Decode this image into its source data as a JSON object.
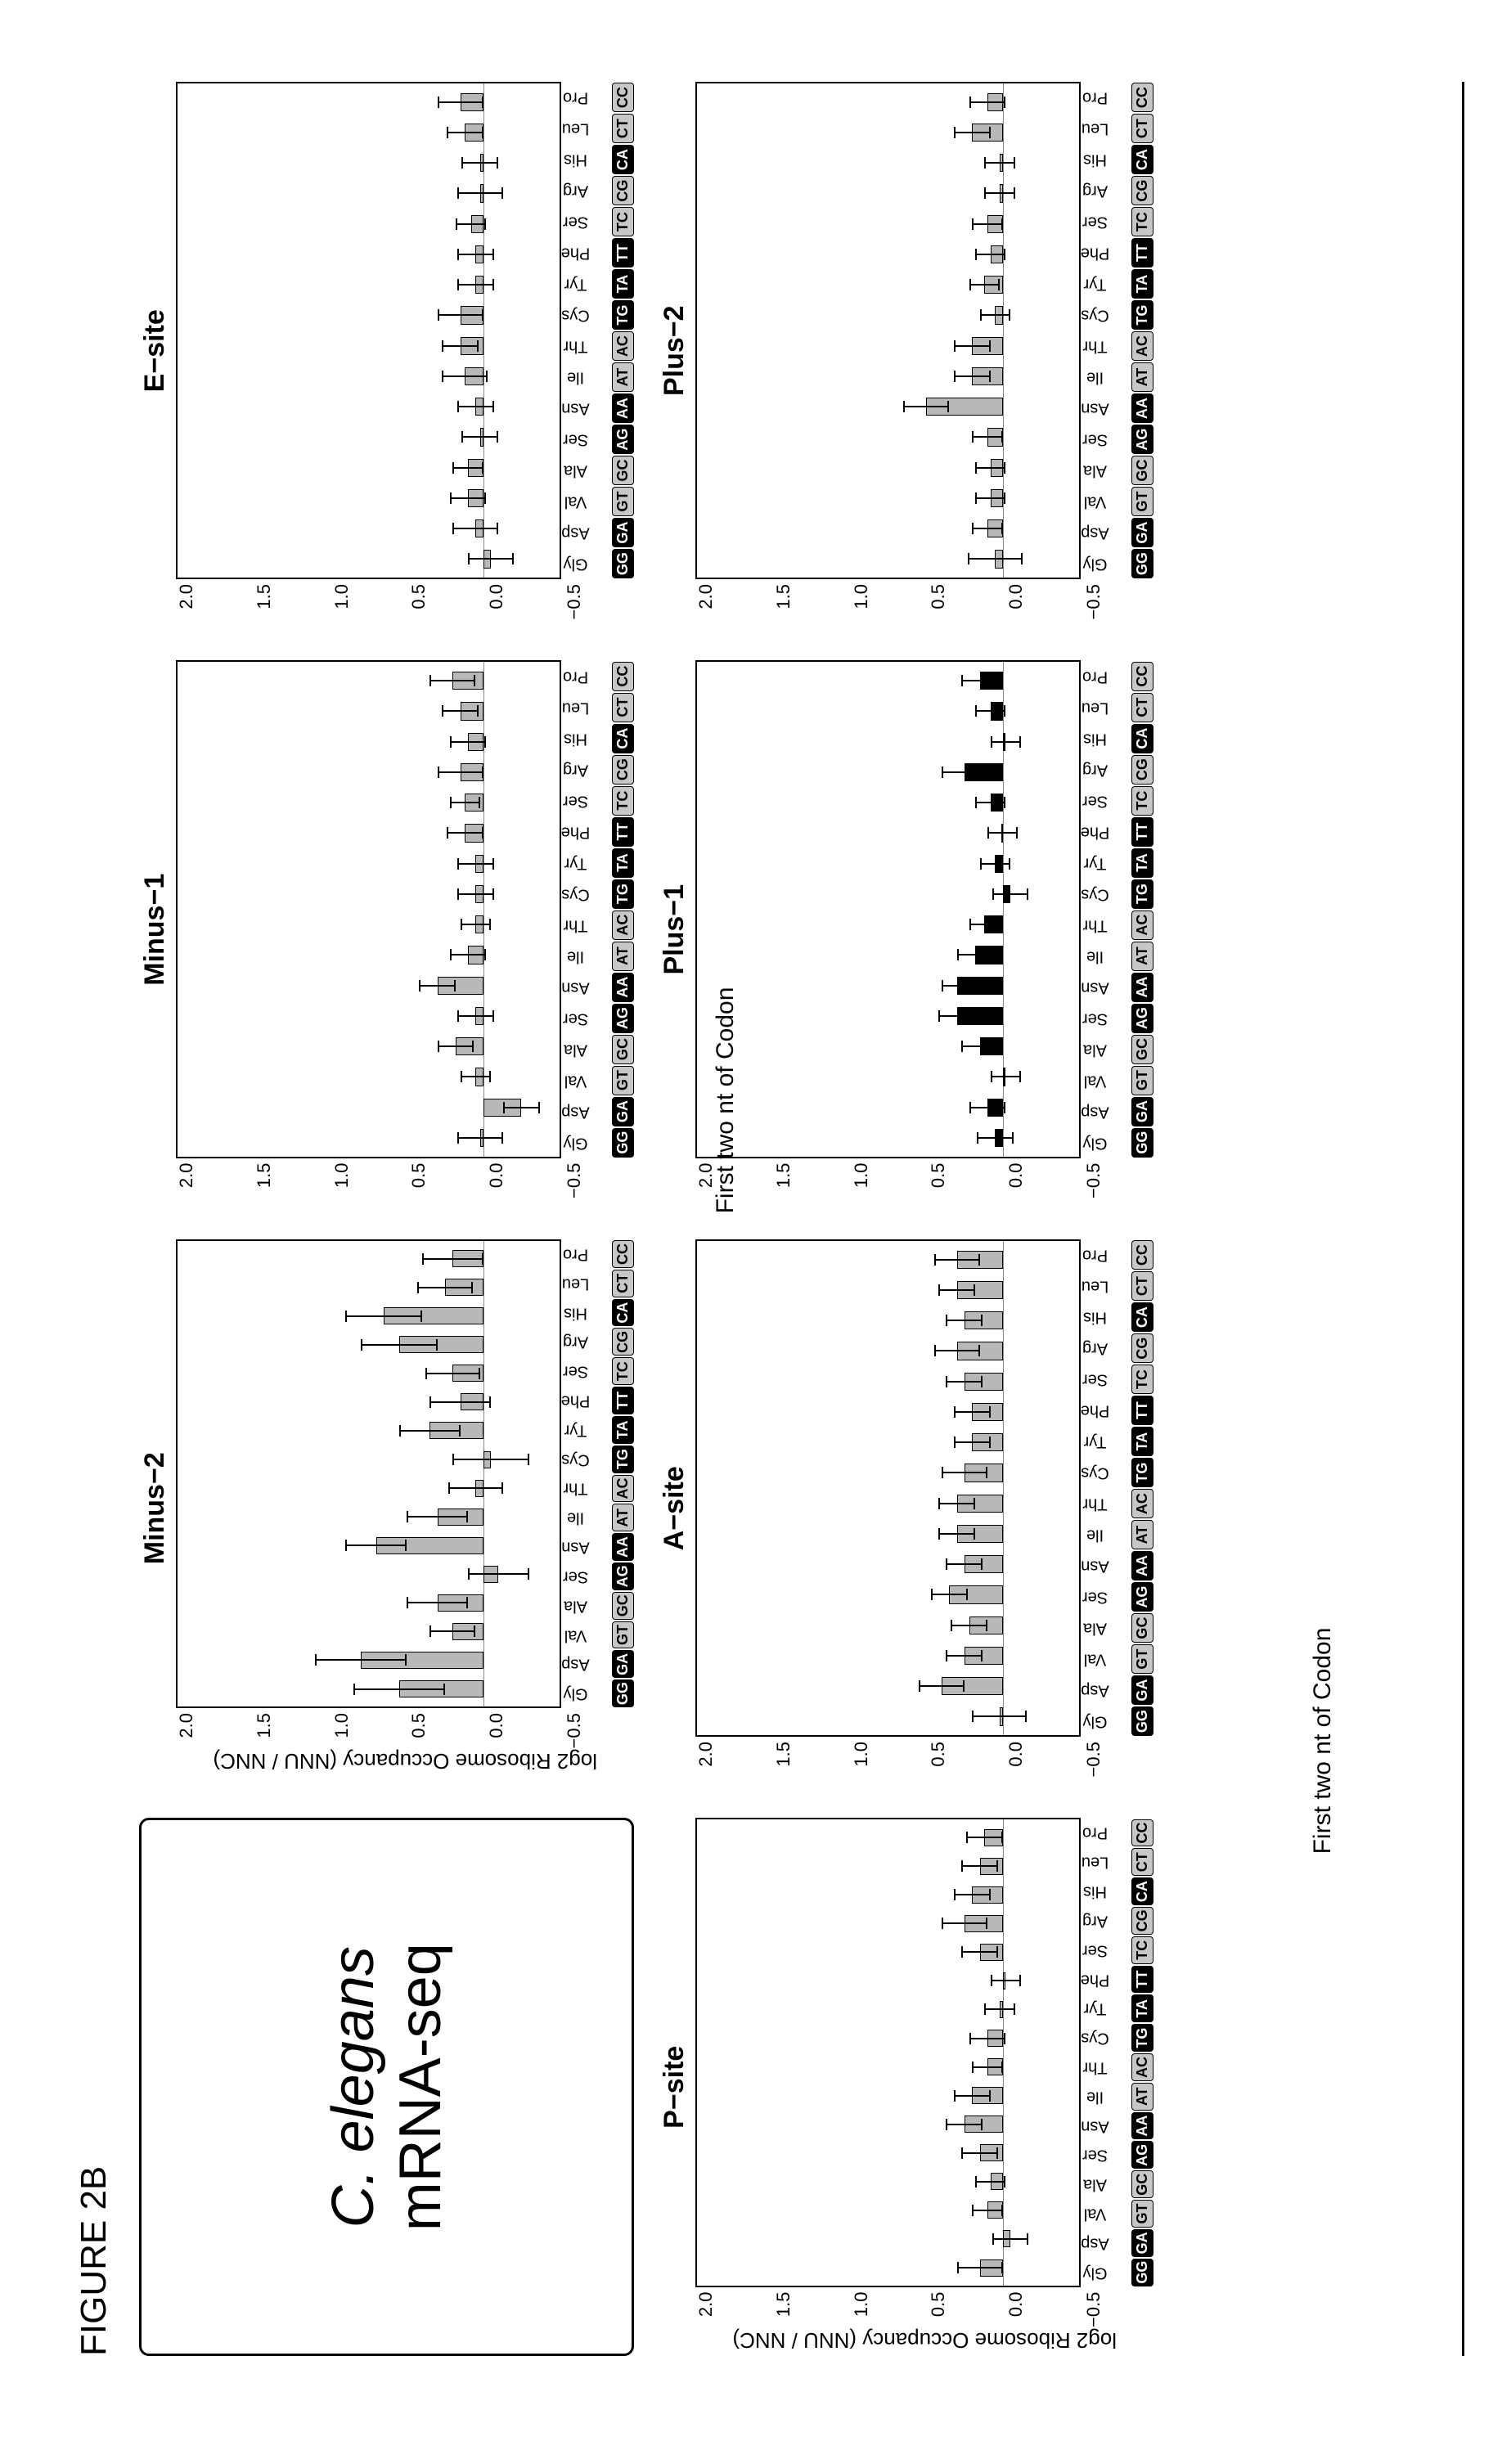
{
  "figure_label": "FIGURE 2B",
  "title_panel": {
    "organism": "C. elegans",
    "assay": "mRNA-seq"
  },
  "y_axis_label": "log2 Ribosome Occupancy (NNU / NNC)",
  "y_ticks": [
    "2.0",
    "1.5",
    "1.0",
    "0.5",
    "0.0",
    "−0.5"
  ],
  "y_min": -0.5,
  "y_max": 2.0,
  "row1_xtitle": "First two nt of Codon",
  "row2_xtitle": "First two nt of Codon",
  "colors": {
    "bar_black": "#000000",
    "bar_grey": "#b8b8b8",
    "codon_dark_bg": "#000000",
    "codon_dark_fg": "#ffffff",
    "codon_light_bg": "#c7c7c7",
    "codon_light_fg": "#000000",
    "axis": "#000000",
    "background": "#ffffff"
  },
  "categories": [
    {
      "aa": "Gly",
      "codon": "GG",
      "shade": "dark"
    },
    {
      "aa": "Asp",
      "codon": "GA",
      "shade": "dark"
    },
    {
      "aa": "Val",
      "codon": "GT",
      "shade": "light"
    },
    {
      "aa": "Ala",
      "codon": "GC",
      "shade": "light"
    },
    {
      "aa": "Ser",
      "codon": "AG",
      "shade": "dark"
    },
    {
      "aa": "Asn",
      "codon": "AA",
      "shade": "dark"
    },
    {
      "aa": "Ile",
      "codon": "AT",
      "shade": "light"
    },
    {
      "aa": "Thr",
      "codon": "AC",
      "shade": "light"
    },
    {
      "aa": "Cys",
      "codon": "TG",
      "shade": "dark"
    },
    {
      "aa": "Tyr",
      "codon": "TA",
      "shade": "dark"
    },
    {
      "aa": "Phe",
      "codon": "TT",
      "shade": "dark"
    },
    {
      "aa": "Ser",
      "codon": "TC",
      "shade": "light"
    },
    {
      "aa": "Arg",
      "codon": "CG",
      "shade": "light"
    },
    {
      "aa": "His",
      "codon": "CA",
      "shade": "dark"
    },
    {
      "aa": "Leu",
      "codon": "CT",
      "shade": "light"
    },
    {
      "aa": "Pro",
      "codon": "CC",
      "shade": "light"
    }
  ],
  "panels": [
    {
      "id": "minus2",
      "title": "Minus−2",
      "grey": true,
      "show_ylabel": true,
      "bars": [
        {
          "v": 0.55,
          "e": 0.3
        },
        {
          "v": 0.8,
          "e": 0.3
        },
        {
          "v": 0.2,
          "e": 0.15
        },
        {
          "v": 0.3,
          "e": 0.2
        },
        {
          "v": -0.1,
          "e": 0.2
        },
        {
          "v": 0.7,
          "e": 0.2
        },
        {
          "v": 0.3,
          "e": 0.2
        },
        {
          "v": 0.05,
          "e": 0.18
        },
        {
          "v": -0.05,
          "e": 0.25
        },
        {
          "v": 0.35,
          "e": 0.2
        },
        {
          "v": 0.15,
          "e": 0.2
        },
        {
          "v": 0.2,
          "e": 0.18
        },
        {
          "v": 0.55,
          "e": 0.25
        },
        {
          "v": 0.65,
          "e": 0.25
        },
        {
          "v": 0.25,
          "e": 0.18
        },
        {
          "v": 0.2,
          "e": 0.2
        }
      ]
    },
    {
      "id": "minus1",
      "title": "Minus−1",
      "grey": true,
      "show_ylabel": false,
      "bars": [
        {
          "v": 0.02,
          "e": 0.15
        },
        {
          "v": -0.25,
          "e": 0.12
        },
        {
          "v": 0.05,
          "e": 0.1
        },
        {
          "v": 0.18,
          "e": 0.12
        },
        {
          "v": 0.05,
          "e": 0.12
        },
        {
          "v": 0.3,
          "e": 0.12
        },
        {
          "v": 0.1,
          "e": 0.12
        },
        {
          "v": 0.05,
          "e": 0.1
        },
        {
          "v": 0.05,
          "e": 0.12
        },
        {
          "v": 0.05,
          "e": 0.12
        },
        {
          "v": 0.12,
          "e": 0.12
        },
        {
          "v": 0.12,
          "e": 0.1
        },
        {
          "v": 0.15,
          "e": 0.15
        },
        {
          "v": 0.1,
          "e": 0.12
        },
        {
          "v": 0.15,
          "e": 0.12
        },
        {
          "v": 0.2,
          "e": 0.15
        }
      ]
    },
    {
      "id": "esite",
      "title": "E−site",
      "grey": true,
      "show_ylabel": false,
      "bars": [
        {
          "v": -0.05,
          "e": 0.15
        },
        {
          "v": 0.05,
          "e": 0.15
        },
        {
          "v": 0.1,
          "e": 0.12
        },
        {
          "v": 0.1,
          "e": 0.1
        },
        {
          "v": 0.02,
          "e": 0.12
        },
        {
          "v": 0.05,
          "e": 0.12
        },
        {
          "v": 0.12,
          "e": 0.15
        },
        {
          "v": 0.15,
          "e": 0.12
        },
        {
          "v": 0.15,
          "e": 0.15
        },
        {
          "v": 0.05,
          "e": 0.12
        },
        {
          "v": 0.05,
          "e": 0.12
        },
        {
          "v": 0.08,
          "e": 0.1
        },
        {
          "v": 0.02,
          "e": 0.15
        },
        {
          "v": 0.02,
          "e": 0.12
        },
        {
          "v": 0.12,
          "e": 0.12
        },
        {
          "v": 0.15,
          "e": 0.15
        }
      ]
    },
    {
      "id": "psite",
      "title": "P−site",
      "grey": true,
      "show_ylabel": true,
      "bars": [
        {
          "v": 0.15,
          "e": 0.15
        },
        {
          "v": -0.05,
          "e": 0.12
        },
        {
          "v": 0.1,
          "e": 0.1
        },
        {
          "v": 0.08,
          "e": 0.1
        },
        {
          "v": 0.15,
          "e": 0.12
        },
        {
          "v": 0.25,
          "e": 0.12
        },
        {
          "v": 0.2,
          "e": 0.12
        },
        {
          "v": 0.1,
          "e": 0.1
        },
        {
          "v": 0.1,
          "e": 0.12
        },
        {
          "v": 0.02,
          "e": 0.1
        },
        {
          "v": -0.02,
          "e": 0.1
        },
        {
          "v": 0.15,
          "e": 0.12
        },
        {
          "v": 0.25,
          "e": 0.15
        },
        {
          "v": 0.2,
          "e": 0.12
        },
        {
          "v": 0.15,
          "e": 0.12
        },
        {
          "v": 0.12,
          "e": 0.12
        }
      ]
    },
    {
      "id": "asite",
      "title": "A−site",
      "grey": true,
      "show_ylabel": false,
      "bars": [
        {
          "v": 0.02,
          "e": 0.18
        },
        {
          "v": 0.4,
          "e": 0.15
        },
        {
          "v": 0.25,
          "e": 0.12
        },
        {
          "v": 0.22,
          "e": 0.12
        },
        {
          "v": 0.35,
          "e": 0.12
        },
        {
          "v": 0.25,
          "e": 0.12
        },
        {
          "v": 0.3,
          "e": 0.12
        },
        {
          "v": 0.3,
          "e": 0.12
        },
        {
          "v": 0.25,
          "e": 0.15
        },
        {
          "v": 0.2,
          "e": 0.12
        },
        {
          "v": 0.2,
          "e": 0.12
        },
        {
          "v": 0.25,
          "e": 0.12
        },
        {
          "v": 0.3,
          "e": 0.15
        },
        {
          "v": 0.25,
          "e": 0.12
        },
        {
          "v": 0.3,
          "e": 0.12
        },
        {
          "v": 0.3,
          "e": 0.15
        }
      ]
    },
    {
      "id": "plus1",
      "title": "Plus−1",
      "grey": false,
      "show_ylabel": false,
      "bars": [
        {
          "v": 0.05,
          "e": 0.12
        },
        {
          "v": 0.1,
          "e": 0.12
        },
        {
          "v": -0.02,
          "e": 0.1
        },
        {
          "v": 0.15,
          "e": 0.12
        },
        {
          "v": 0.3,
          "e": 0.12
        },
        {
          "v": 0.3,
          "e": 0.1
        },
        {
          "v": 0.18,
          "e": 0.12
        },
        {
          "v": 0.12,
          "e": 0.1
        },
        {
          "v": -0.05,
          "e": 0.12
        },
        {
          "v": 0.05,
          "e": 0.1
        },
        {
          "v": 0.0,
          "e": 0.1
        },
        {
          "v": 0.08,
          "e": 0.1
        },
        {
          "v": 0.25,
          "e": 0.15
        },
        {
          "v": -0.02,
          "e": 0.1
        },
        {
          "v": 0.08,
          "e": 0.1
        },
        {
          "v": 0.15,
          "e": 0.12
        }
      ]
    },
    {
      "id": "plus2",
      "title": "Plus−2",
      "grey": true,
      "show_ylabel": false,
      "bars": [
        {
          "v": 0.05,
          "e": 0.18
        },
        {
          "v": 0.1,
          "e": 0.1
        },
        {
          "v": 0.08,
          "e": 0.1
        },
        {
          "v": 0.08,
          "e": 0.1
        },
        {
          "v": 0.1,
          "e": 0.1
        },
        {
          "v": 0.5,
          "e": 0.15
        },
        {
          "v": 0.2,
          "e": 0.12
        },
        {
          "v": 0.2,
          "e": 0.12
        },
        {
          "v": 0.05,
          "e": 0.1
        },
        {
          "v": 0.12,
          "e": 0.1
        },
        {
          "v": 0.08,
          "e": 0.1
        },
        {
          "v": 0.1,
          "e": 0.1
        },
        {
          "v": 0.02,
          "e": 0.1
        },
        {
          "v": 0.02,
          "e": 0.1
        },
        {
          "v": 0.2,
          "e": 0.12
        },
        {
          "v": 0.1,
          "e": 0.12
        }
      ]
    }
  ],
  "layout": {
    "grid_cols": 4,
    "grid_rows": 2,
    "title_panel_cell": [
      0,
      0
    ],
    "row1_panels": [
      "minus2",
      "minus1",
      "esite"
    ],
    "row2_panels": [
      "psite",
      "asite",
      "plus1",
      "plus2"
    ],
    "panel_font_size": 34,
    "tick_font_size": 22,
    "aa_font_size": 20,
    "codon_font_size": 18
  }
}
